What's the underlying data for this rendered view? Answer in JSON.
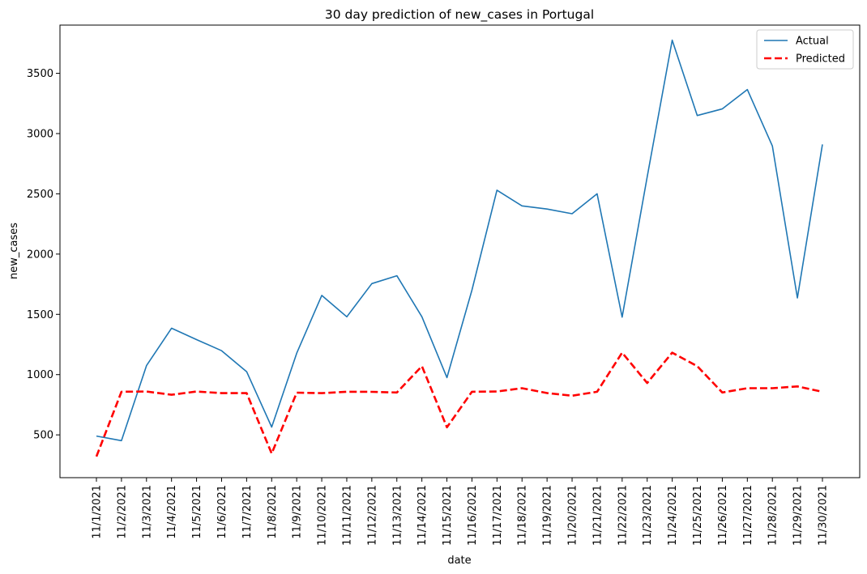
{
  "chart_data": {
    "type": "line",
    "title": "30 day prediction of new_cases in Portugal",
    "xlabel": "date",
    "ylabel": "new_cases",
    "ylim": [
      145,
      3900
    ],
    "yticks": [
      500,
      1000,
      1500,
      2000,
      2500,
      3000,
      3500
    ],
    "grid": false,
    "legend_position": "top-right",
    "categories": [
      "11/1/2021",
      "11/2/2021",
      "11/3/2021",
      "11/4/2021",
      "11/5/2021",
      "11/6/2021",
      "11/7/2021",
      "11/8/2021",
      "11/9/2021",
      "11/10/2021",
      "11/11/2021",
      "11/12/2021",
      "11/13/2021",
      "11/14/2021",
      "11/15/2021",
      "11/16/2021",
      "11/17/2021",
      "11/18/2021",
      "11/19/2021",
      "11/20/2021",
      "11/21/2021",
      "11/22/2021",
      "11/23/2021",
      "11/24/2021",
      "11/25/2021",
      "11/26/2021",
      "11/27/2021",
      "11/28/2021",
      "11/29/2021",
      "11/30/2021"
    ],
    "series": [
      {
        "name": "Actual",
        "color": "#1f77b4",
        "style": "solid",
        "values": [
          490,
          452,
          1075,
          1385,
          1290,
          1198,
          1024,
          565,
          1178,
          1657,
          1480,
          1755,
          1820,
          1480,
          975,
          1700,
          2530,
          2400,
          2374,
          2335,
          2500,
          1477,
          2640,
          3775,
          3150,
          3205,
          3365,
          2897,
          1636,
          2910
        ]
      },
      {
        "name": "Predicted",
        "color": "#ff0000",
        "style": "dashed",
        "values": [
          320,
          858,
          860,
          833,
          860,
          846,
          846,
          345,
          850,
          846,
          858,
          857,
          852,
          1070,
          563,
          858,
          860,
          887,
          847,
          825,
          858,
          1182,
          930,
          1182,
          1070,
          852,
          887,
          887,
          902,
          858
        ]
      }
    ]
  }
}
